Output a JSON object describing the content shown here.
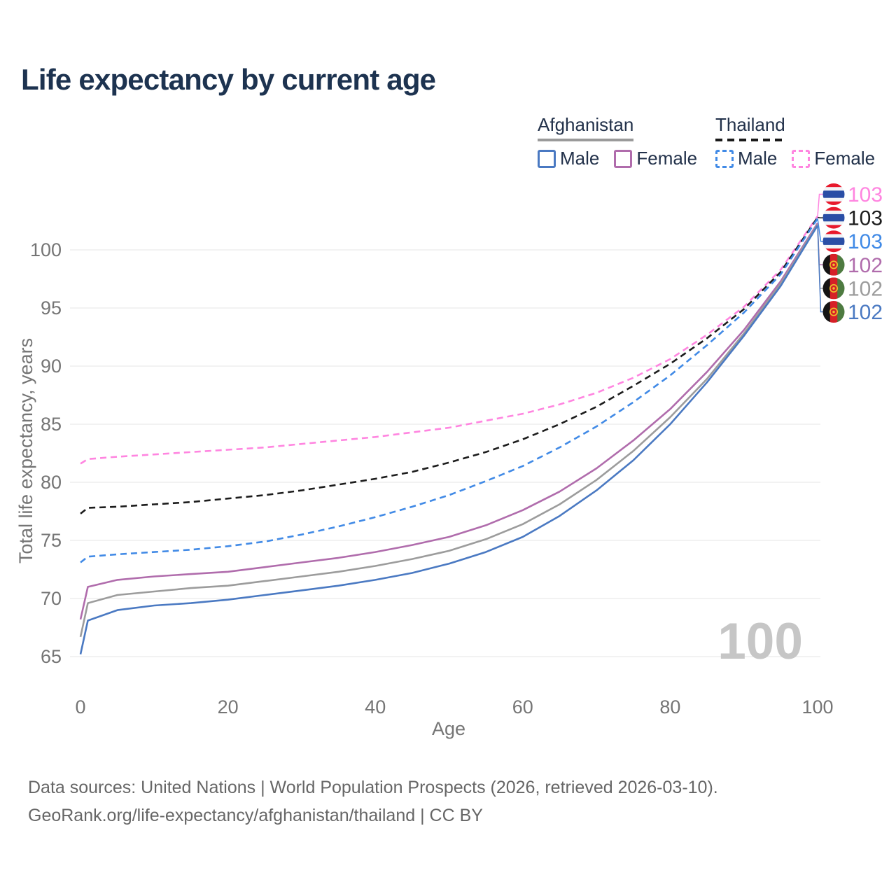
{
  "page": {
    "title": "Life expectancy by current age"
  },
  "legend": {
    "groups": [
      {
        "country": "Afghanistan",
        "line_style": "solid",
        "underline_color": "#9a9a9a",
        "items": [
          {
            "label": "Male",
            "color": "#4a79c2",
            "dashed": false
          },
          {
            "label": "Female",
            "color": "#b06cac",
            "dashed": false
          }
        ]
      },
      {
        "country": "Thailand",
        "line_style": "dashed",
        "underline_color": "#1a1a1a",
        "items": [
          {
            "label": "Male",
            "color": "#418ae6",
            "dashed": true
          },
          {
            "label": "Female",
            "color": "#ff85e0",
            "dashed": true
          }
        ]
      }
    ]
  },
  "watermark_age": "100",
  "footer": {
    "line1": "Data sources: United Nations | World Population Prospects (2026, retrieved 2026-03-10).",
    "line2": "GeoRank.org/life-expectancy/afghanistan/thailand | CC BY"
  },
  "chart_data": {
    "type": "line",
    "title": "Life expectancy by current age",
    "xlabel": "Age",
    "ylabel": "Total life expectancy, years",
    "xticks": [
      0,
      20,
      40,
      60,
      80,
      100
    ],
    "yticks": [
      65,
      70,
      75,
      80,
      85,
      90,
      95,
      100
    ],
    "xlim": [
      0,
      100
    ],
    "ylim": [
      63.5,
      104.5
    ],
    "grid": "horizontal",
    "legend_position": "top-right",
    "x": [
      0,
      1,
      5,
      10,
      15,
      20,
      25,
      30,
      35,
      40,
      45,
      50,
      55,
      60,
      65,
      70,
      75,
      80,
      85,
      90,
      95,
      100
    ],
    "series": [
      {
        "id": "thailand-female",
        "name": "Thailand Female",
        "country": "Thailand",
        "sex": "Female",
        "color": "#ff85e0",
        "dashed": true,
        "flag": "thailand",
        "end_label": "103",
        "values": [
          81.6,
          82.0,
          82.2,
          82.4,
          82.6,
          82.8,
          83.0,
          83.3,
          83.6,
          83.9,
          84.3,
          84.7,
          85.3,
          85.9,
          86.7,
          87.7,
          89.0,
          90.6,
          92.7,
          95.1,
          98.3,
          102.9
        ]
      },
      {
        "id": "thailand-both",
        "name": "Thailand Both sexes",
        "country": "Thailand",
        "sex": "Both sexes",
        "color": "#1c1c1c",
        "dashed": true,
        "flag": "thailand",
        "end_label": "103",
        "values": [
          77.3,
          77.8,
          77.9,
          78.1,
          78.3,
          78.6,
          78.9,
          79.3,
          79.8,
          80.3,
          80.9,
          81.7,
          82.6,
          83.7,
          85.0,
          86.5,
          88.3,
          90.2,
          92.4,
          94.9,
          98.1,
          102.8
        ]
      },
      {
        "id": "thailand-male",
        "name": "Thailand Male",
        "country": "Thailand",
        "sex": "Male",
        "color": "#418ae6",
        "dashed": true,
        "flag": "thailand",
        "end_label": "103",
        "values": [
          73.1,
          73.6,
          73.8,
          74.0,
          74.2,
          74.5,
          74.9,
          75.5,
          76.2,
          77.0,
          77.9,
          78.9,
          80.1,
          81.4,
          83.0,
          84.8,
          86.9,
          89.2,
          91.8,
          94.6,
          97.9,
          102.7
        ]
      },
      {
        "id": "afghanistan-female",
        "name": "Afghanistan Female",
        "country": "Afghanistan",
        "sex": "Female",
        "color": "#b06cac",
        "dashed": false,
        "flag": "afghanistan",
        "end_label": "102",
        "values": [
          68.2,
          71.0,
          71.6,
          71.9,
          72.1,
          72.3,
          72.7,
          73.1,
          73.5,
          74.0,
          74.6,
          75.3,
          76.3,
          77.6,
          79.2,
          81.2,
          83.6,
          86.3,
          89.5,
          93.1,
          97.3,
          102.3
        ]
      },
      {
        "id": "afghanistan-both",
        "name": "Afghanistan Both sexes",
        "country": "Afghanistan",
        "sex": "Both sexes",
        "color": "#9c9c9c",
        "dashed": false,
        "flag": "afghanistan",
        "end_label": "102",
        "values": [
          66.7,
          69.6,
          70.3,
          70.6,
          70.9,
          71.1,
          71.5,
          71.9,
          72.3,
          72.8,
          73.4,
          74.1,
          75.1,
          76.4,
          78.1,
          80.2,
          82.7,
          85.6,
          88.9,
          92.8,
          97.1,
          102.2
        ]
      },
      {
        "id": "afghanistan-male",
        "name": "Afghanistan Male",
        "country": "Afghanistan",
        "sex": "Male",
        "color": "#4a79c2",
        "dashed": false,
        "flag": "afghanistan",
        "end_label": "102",
        "values": [
          65.2,
          68.1,
          69.0,
          69.4,
          69.6,
          69.9,
          70.3,
          70.7,
          71.1,
          71.6,
          72.2,
          73.0,
          74.0,
          75.3,
          77.1,
          79.3,
          81.9,
          85.0,
          88.6,
          92.6,
          96.9,
          102.1
        ]
      }
    ]
  }
}
